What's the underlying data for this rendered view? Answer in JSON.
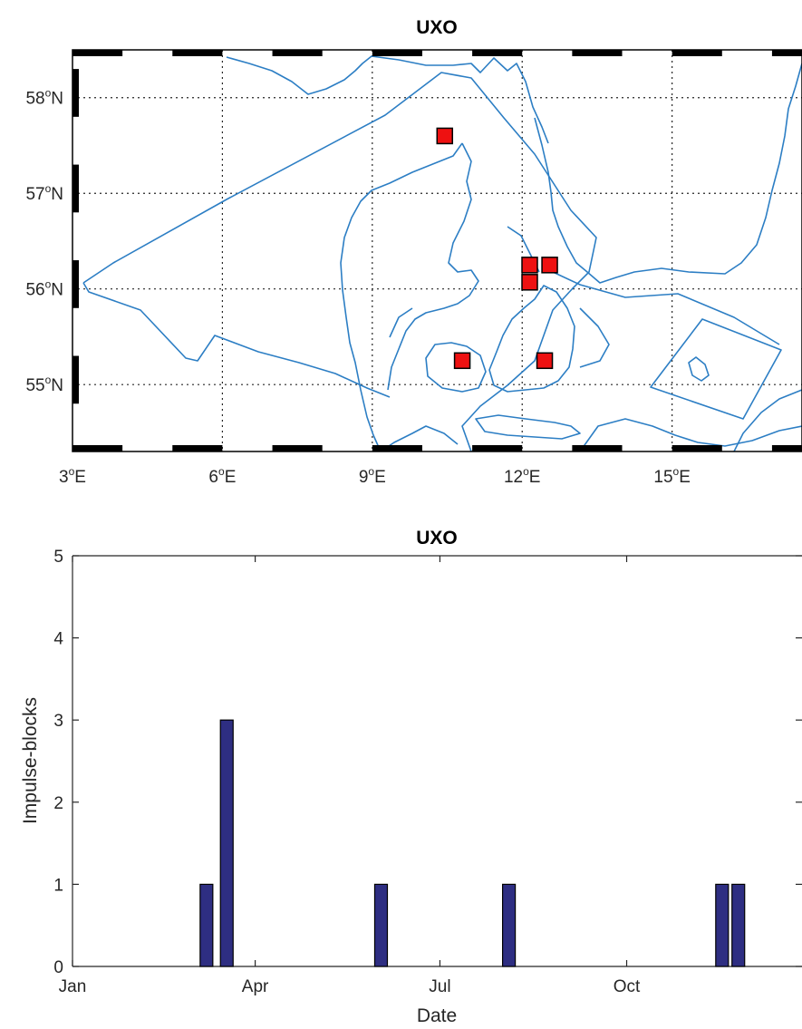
{
  "chart_data": [
    {
      "type": "map",
      "title": "UXO",
      "lon_range": [
        3,
        17.6
      ],
      "lat_range": [
        54.3,
        58.5
      ],
      "lon_ticks": [
        {
          "deg": 3,
          "label": "3",
          "hemi": "E"
        },
        {
          "deg": 6,
          "label": "6",
          "hemi": "E"
        },
        {
          "deg": 9,
          "label": "9",
          "hemi": "E"
        },
        {
          "deg": 12,
          "label": "12",
          "hemi": "E"
        },
        {
          "deg": 15,
          "label": "15",
          "hemi": "E"
        }
      ],
      "lat_ticks": [
        {
          "deg": 58,
          "label": "58",
          "hemi": "N"
        },
        {
          "deg": 57,
          "label": "57",
          "hemi": "N"
        },
        {
          "deg": 56,
          "label": "56",
          "hemi": "N"
        },
        {
          "deg": 55,
          "label": "55",
          "hemi": "N"
        }
      ],
      "degree_symbol": "o",
      "grid": true,
      "marker_color": "#ee1111",
      "line_color": "#2c7ec4",
      "events": [
        {
          "lon": 10.45,
          "lat": 57.6
        },
        {
          "lon": 12.15,
          "lat": 56.25
        },
        {
          "lon": 12.55,
          "lat": 56.25
        },
        {
          "lon": 12.15,
          "lat": 56.07
        },
        {
          "lon": 10.8,
          "lat": 55.25
        },
        {
          "lon": 12.45,
          "lat": 55.25
        }
      ]
    },
    {
      "type": "bar",
      "title": "UXO",
      "xlabel": "Date",
      "ylabel": "Impulse-blocks",
      "ylim": [
        0,
        5
      ],
      "yticks": [
        0,
        1,
        2,
        3,
        4,
        5
      ],
      "x_ticks": [
        {
          "label": "Jan",
          "day": 1
        },
        {
          "label": "Apr",
          "day": 91
        },
        {
          "label": "Jul",
          "day": 182
        },
        {
          "label": "Oct",
          "day": 274
        }
      ],
      "bar_color": "#2e2e82",
      "bars": [
        {
          "day": 67,
          "value": 1
        },
        {
          "day": 77,
          "value": 3
        },
        {
          "day": 153,
          "value": 1
        },
        {
          "day": 216,
          "value": 1
        },
        {
          "day": 321,
          "value": 1
        },
        {
          "day": 329,
          "value": 1
        }
      ]
    }
  ]
}
